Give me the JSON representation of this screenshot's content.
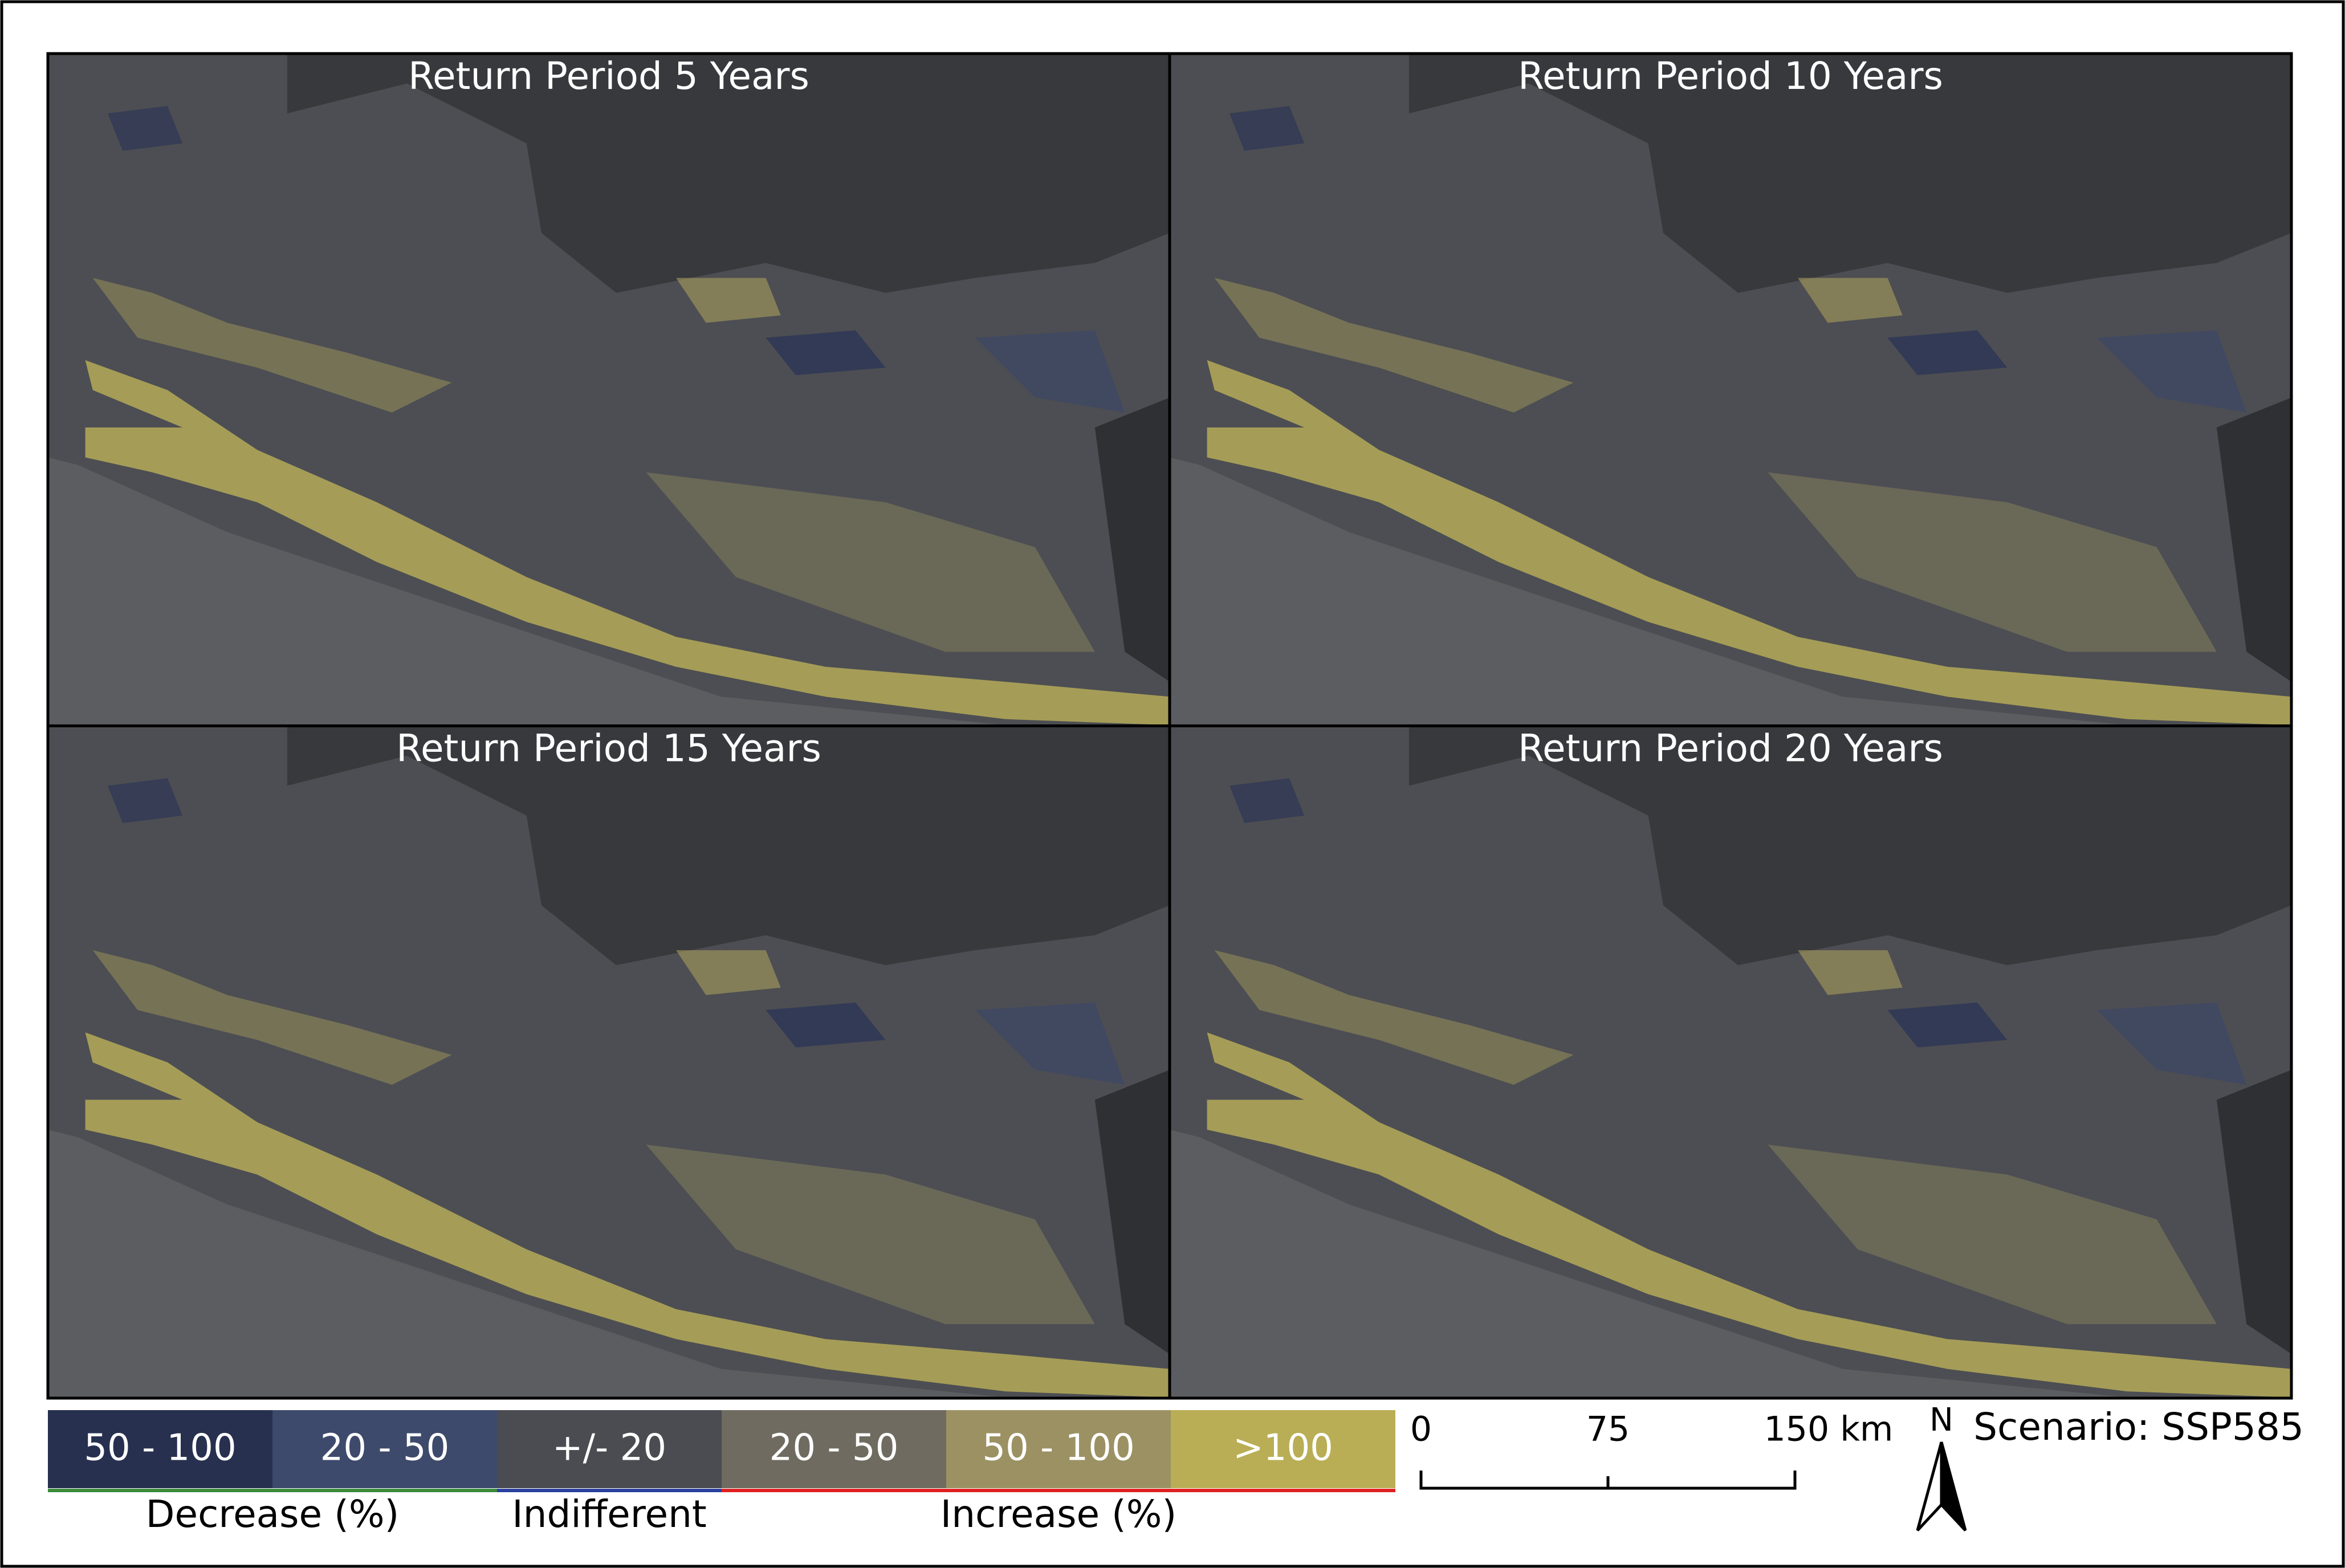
{
  "panels": [
    {
      "title": "Return Period 5 Years"
    },
    {
      "title": "Return Period 10 Years"
    },
    {
      "title": "Return Period 15 Years"
    },
    {
      "title": "Return Period 20 Years"
    }
  ],
  "legend": {
    "classes": [
      "50 - 100",
      "20 - 50",
      "+/- 20",
      "20 - 50",
      "50 - 100",
      ">100"
    ],
    "groups": [
      "Decrease (%)",
      "Indifferent",
      "Increase (%)"
    ]
  },
  "scale_bar": {
    "labels": [
      "0",
      "75",
      "150 km"
    ]
  },
  "north": "N",
  "scenario": "Scenario: SSP585"
}
